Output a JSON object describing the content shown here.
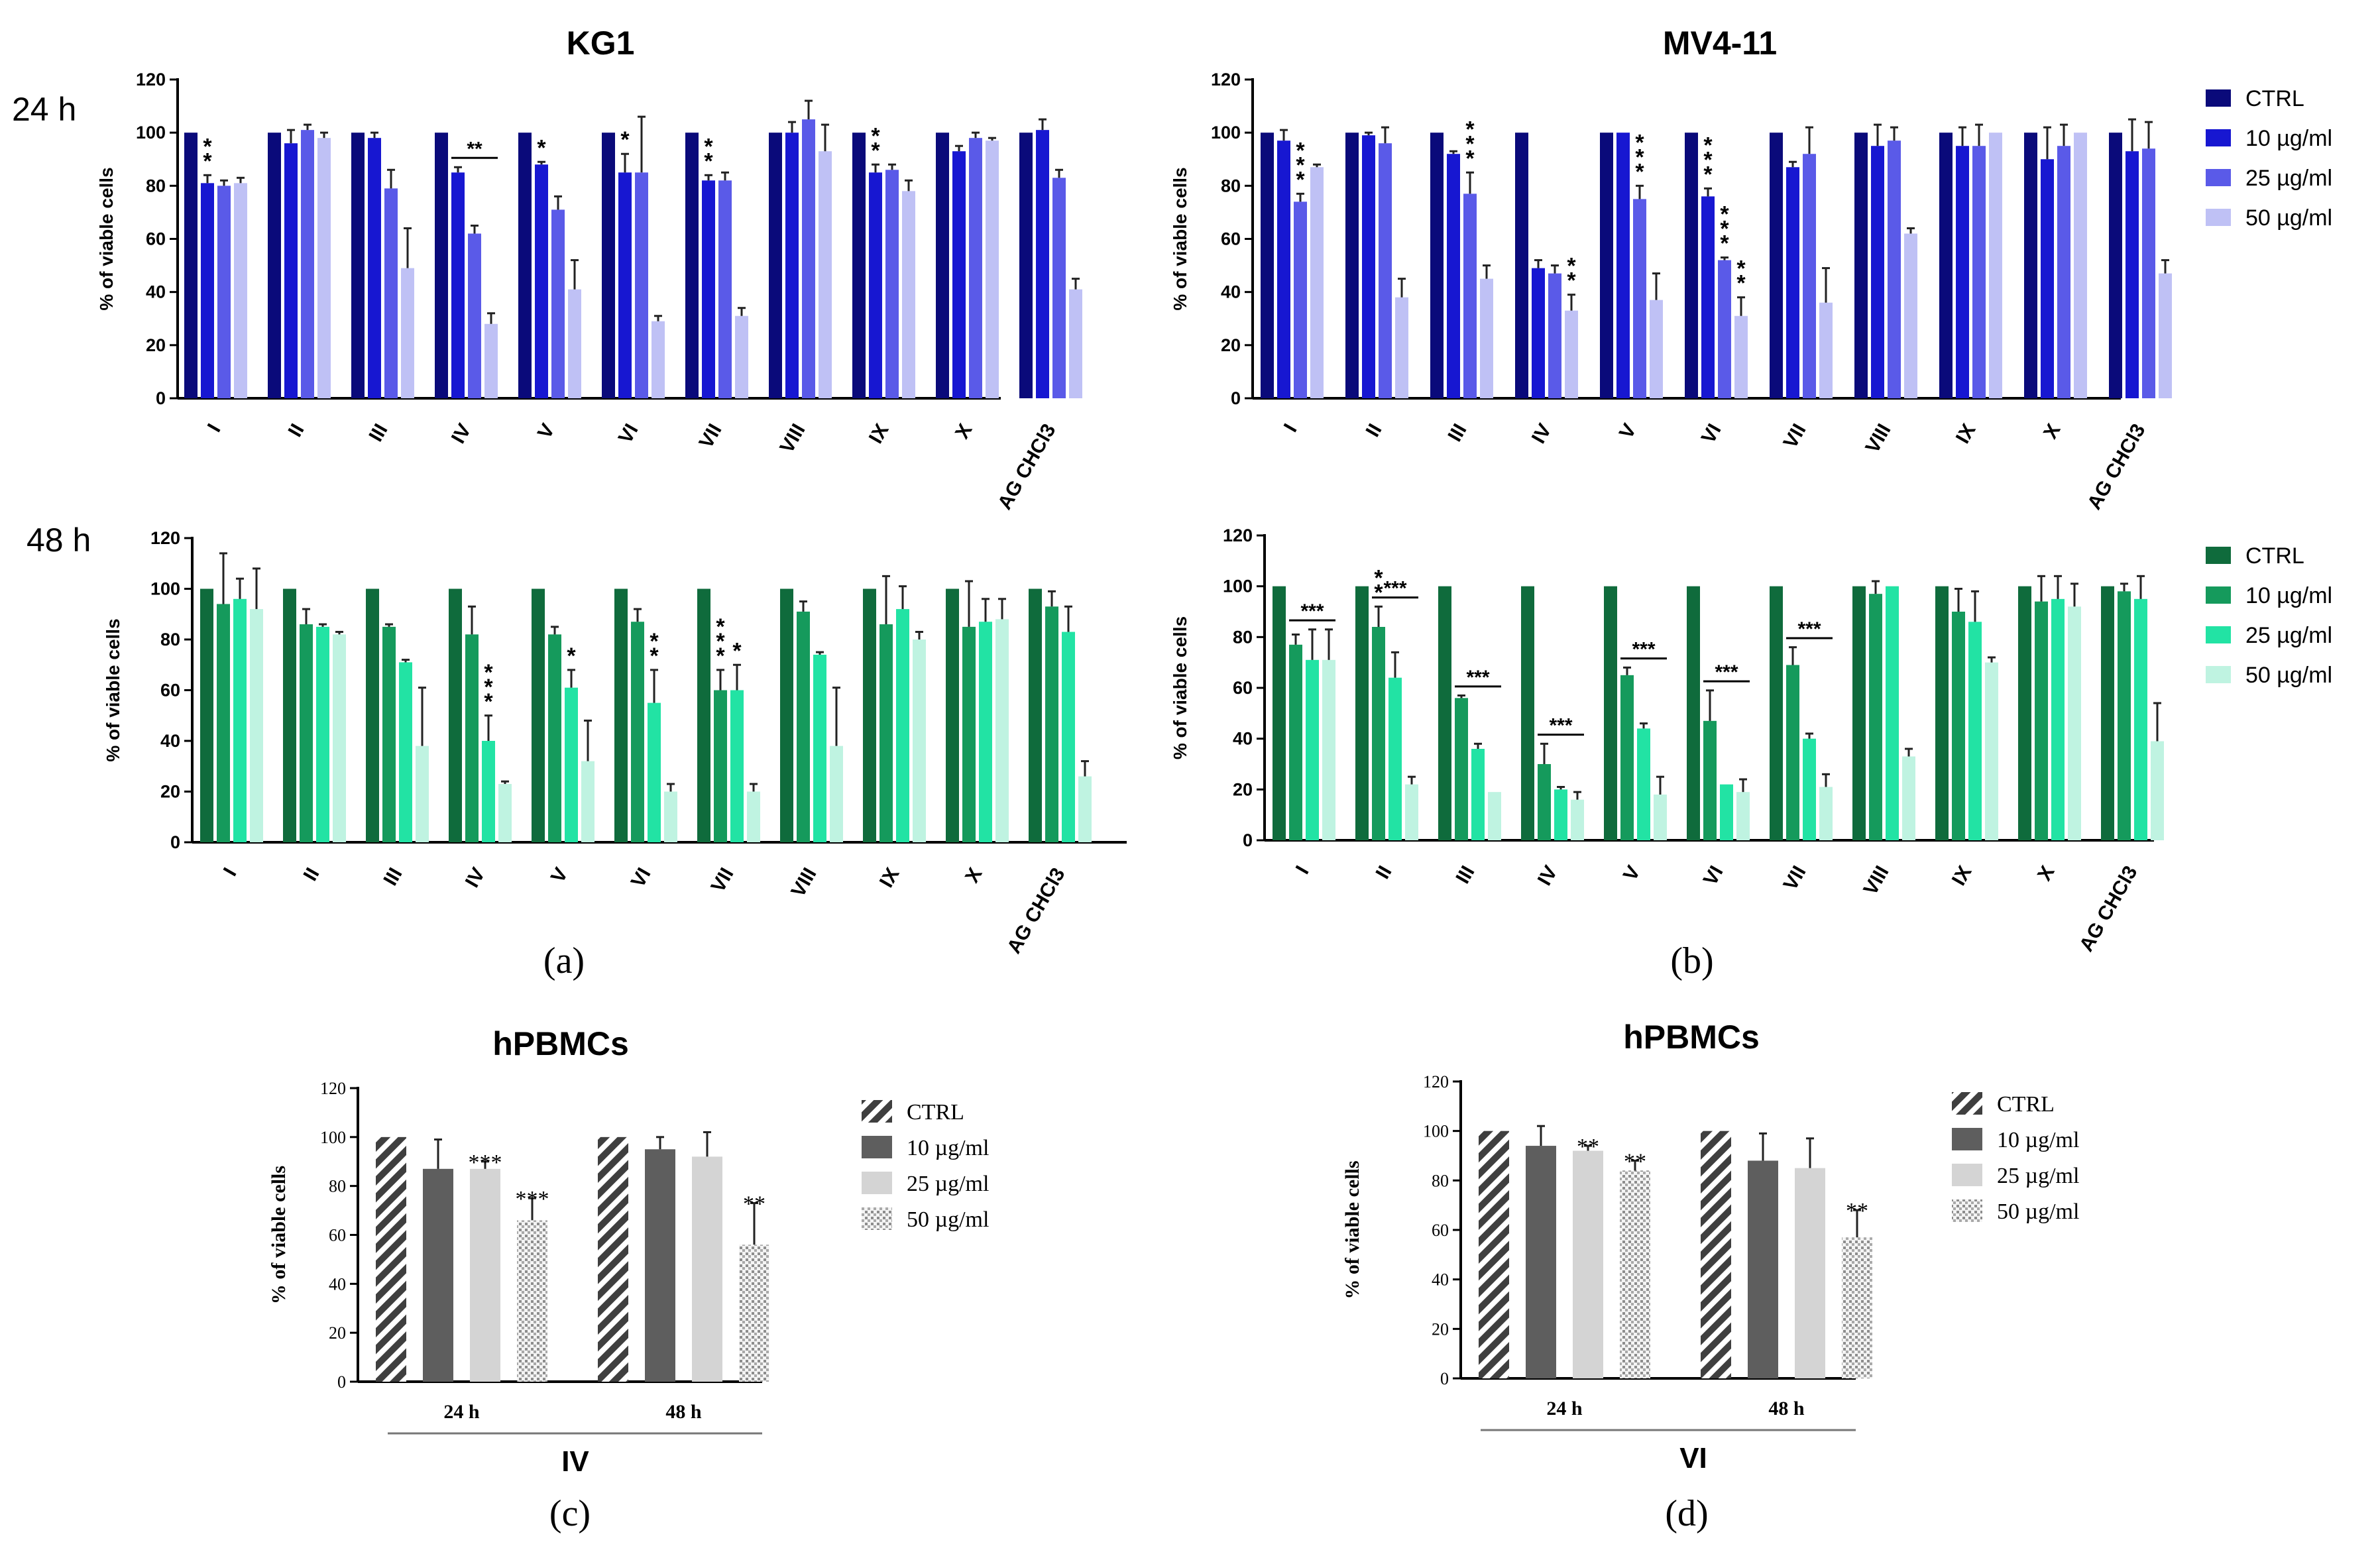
{
  "figure": {
    "panel_a_label": "(a)",
    "panel_b_label": "(b)",
    "panel_c_label": "(c)",
    "panel_d_label": "(d)",
    "row_24h": "24 h",
    "row_48h": "48 h",
    "colors": {
      "blue": [
        "#0a0a7a",
        "#1717d1",
        "#5a5ae8",
        "#bfc1f5"
      ],
      "green": [
        "#0f6b3c",
        "#159a5c",
        "#22e3a4",
        "#bff3e1"
      ],
      "gray": [
        "#4a4a4a",
        "#5e5e5e",
        "#d4d4d4",
        "#bdbdbd"
      ]
    }
  },
  "chart_data": [
    {
      "id": "kg1_24",
      "type": "bar",
      "title": "KG1",
      "ylabel": "% of viable cells",
      "ylim": [
        0,
        120
      ],
      "yticks": [
        0,
        20,
        40,
        60,
        80,
        100,
        120
      ],
      "categories": [
        "I",
        "II",
        "III",
        "IV",
        "V",
        "VI",
        "VII",
        "VIII",
        "IX",
        "X",
        "AG CHCl3"
      ],
      "legend": null,
      "series": [
        {
          "name": "CTRL",
          "values": [
            100,
            100,
            100,
            100,
            100,
            100,
            100,
            100,
            100,
            100,
            100
          ],
          "errors": [
            0,
            0,
            0,
            0,
            0,
            0,
            0,
            0,
            0,
            0,
            0
          ]
        },
        {
          "name": "10 µg/ml",
          "values": [
            81,
            96,
            98,
            85,
            88,
            85,
            82,
            100,
            85,
            93,
            101
          ],
          "errors": [
            3,
            5,
            2,
            2,
            1,
            7,
            2,
            4,
            3,
            2,
            4
          ]
        },
        {
          "name": "25 µg/ml",
          "values": [
            80,
            101,
            79,
            62,
            71,
            85,
            82,
            105,
            86,
            98,
            83
          ],
          "errors": [
            2,
            2,
            7,
            3,
            5,
            21,
            3,
            7,
            2,
            2,
            3
          ]
        },
        {
          "name": "50 µg/ml",
          "values": [
            81,
            98,
            49,
            28,
            41,
            29,
            31,
            93,
            78,
            97,
            41
          ],
          "errors": [
            2,
            2,
            15,
            4,
            11,
            2,
            3,
            10,
            4,
            1,
            4
          ]
        }
      ],
      "annotations": [
        {
          "category": 0,
          "series": 1,
          "text": "**",
          "style": "vertical"
        },
        {
          "category": 3,
          "series": 1,
          "text": "**",
          "style": "bracket"
        },
        {
          "category": 4,
          "series": 1,
          "text": "*",
          "style": "vertical"
        },
        {
          "category": 5,
          "series": 1,
          "text": "*",
          "style": "vertical"
        },
        {
          "category": 6,
          "series": 1,
          "text": "**",
          "style": "vertical"
        },
        {
          "category": 8,
          "series": 1,
          "text": "**",
          "style": "vertical"
        }
      ]
    },
    {
      "id": "mv_24",
      "type": "bar",
      "title": "MV4-11",
      "ylabel": "% of viable cells",
      "ylim": [
        0,
        120
      ],
      "yticks": [
        0,
        20,
        40,
        60,
        80,
        100,
        120
      ],
      "categories": [
        "I",
        "II",
        "III",
        "IV",
        "V",
        "VI",
        "VII",
        "VIII",
        "IX",
        "X",
        "AG CHCl3"
      ],
      "legend": [
        "CTRL",
        "10 µg/ml",
        "25 µg/ml",
        "50 µg/ml"
      ],
      "series": [
        {
          "name": "CTRL",
          "values": [
            100,
            100,
            100,
            100,
            100,
            100,
            100,
            100,
            100,
            100,
            100
          ],
          "errors": [
            0,
            0,
            0,
            0,
            0,
            0,
            0,
            0,
            0,
            0,
            0
          ]
        },
        {
          "name": "10 µg/ml",
          "values": [
            97,
            99,
            92,
            49,
            100,
            76,
            87,
            95,
            95,
            90,
            93
          ],
          "errors": [
            4,
            1,
            1,
            3,
            0,
            3,
            2,
            8,
            7,
            12,
            12
          ]
        },
        {
          "name": "25 µg/ml",
          "values": [
            74,
            96,
            77,
            47,
            75,
            52,
            92,
            97,
            95,
            95,
            94
          ],
          "errors": [
            3,
            6,
            8,
            3,
            5,
            1,
            10,
            5,
            8,
            8,
            10
          ]
        },
        {
          "name": "50 µg/ml",
          "values": [
            87,
            38,
            45,
            33,
            37,
            31,
            36,
            62,
            100,
            100,
            47
          ],
          "errors": [
            1,
            7,
            5,
            6,
            10,
            7,
            13,
            2,
            0,
            0,
            5
          ]
        }
      ],
      "annotations": [
        {
          "category": 0,
          "series": 2,
          "text": "***",
          "style": "vertical"
        },
        {
          "category": 2,
          "series": 2,
          "text": "***",
          "style": "vertical"
        },
        {
          "category": 3,
          "series": 3,
          "text": "**",
          "style": "vertical"
        },
        {
          "category": 4,
          "series": 2,
          "text": "***",
          "style": "vertical"
        },
        {
          "category": 5,
          "series": 1,
          "text": "***",
          "style": "vertical"
        },
        {
          "category": 5,
          "series": 2,
          "text": "***",
          "style": "vertical"
        },
        {
          "category": 5,
          "series": 3,
          "text": "**",
          "style": "vertical"
        }
      ]
    },
    {
      "id": "kg1_48",
      "type": "bar",
      "title": "",
      "ylabel": "% of viable cells",
      "ylim": [
        0,
        120
      ],
      "yticks": [
        0,
        20,
        40,
        60,
        80,
        100,
        120
      ],
      "categories": [
        "I",
        "II",
        "III",
        "IV",
        "V",
        "VI",
        "VII",
        "VIII",
        "IX",
        "X",
        "AG CHCl3"
      ],
      "legend": null,
      "series": [
        {
          "name": "CTRL",
          "values": [
            100,
            100,
            100,
            100,
            100,
            100,
            100,
            100,
            100,
            100,
            100
          ],
          "errors": [
            0,
            0,
            0,
            0,
            0,
            0,
            0,
            0,
            0,
            0,
            0
          ]
        },
        {
          "name": "10 µg/ml",
          "values": [
            94,
            86,
            85,
            82,
            82,
            87,
            60,
            91,
            86,
            85,
            93
          ],
          "errors": [
            20,
            6,
            1,
            11,
            3,
            5,
            8,
            4,
            19,
            18,
            6
          ]
        },
        {
          "name": "25 µg/ml",
          "values": [
            96,
            85,
            71,
            40,
            61,
            55,
            60,
            74,
            92,
            87,
            83
          ],
          "errors": [
            8,
            1,
            1,
            10,
            7,
            13,
            10,
            1,
            9,
            9,
            10
          ]
        },
        {
          "name": "50 µg/ml",
          "values": [
            92,
            82,
            38,
            23,
            32,
            20,
            20,
            38,
            80,
            88,
            26
          ],
          "errors": [
            16,
            1,
            23,
            1,
            16,
            3,
            3,
            23,
            3,
            8,
            6
          ]
        }
      ],
      "annotations": [
        {
          "category": 3,
          "series": 2,
          "text": "***",
          "style": "vertical"
        },
        {
          "category": 4,
          "series": 2,
          "text": "*",
          "style": "vertical"
        },
        {
          "category": 5,
          "series": 2,
          "text": "**",
          "style": "vertical"
        },
        {
          "category": 6,
          "series": 1,
          "text": "***",
          "style": "vertical"
        },
        {
          "category": 6,
          "series": 2,
          "text": "*",
          "style": "vertical"
        }
      ]
    },
    {
      "id": "mv_48",
      "type": "bar",
      "title": "",
      "ylabel": "% of viable cells",
      "ylim": [
        0,
        120
      ],
      "yticks": [
        0,
        20,
        40,
        60,
        80,
        100,
        120
      ],
      "categories": [
        "I",
        "II",
        "III",
        "IV",
        "V",
        "VI",
        "VII",
        "VIII",
        "IX",
        "X",
        "AG CHCl3"
      ],
      "legend": [
        "CTRL",
        "10 µg/ml",
        "25 µg/ml",
        "50 µg/ml"
      ],
      "series": [
        {
          "name": "CTRL",
          "values": [
            100,
            100,
            100,
            100,
            100,
            100,
            100,
            100,
            100,
            100,
            100
          ],
          "errors": [
            0,
            0,
            0,
            0,
            0,
            0,
            0,
            0,
            0,
            0,
            0
          ]
        },
        {
          "name": "10 µg/ml",
          "values": [
            77,
            84,
            56,
            30,
            65,
            47,
            69,
            97,
            90,
            94,
            98
          ],
          "errors": [
            4,
            8,
            1,
            8,
            3,
            12,
            7,
            5,
            9,
            10,
            3
          ]
        },
        {
          "name": "25 µg/ml",
          "values": [
            71,
            64,
            36,
            20,
            44,
            22,
            40,
            100,
            86,
            95,
            95
          ],
          "errors": [
            12,
            10,
            2,
            1,
            2,
            0,
            2,
            0,
            12,
            9,
            9
          ]
        },
        {
          "name": "50 µg/ml",
          "values": [
            71,
            22,
            19,
            16,
            18,
            19,
            21,
            33,
            70,
            92,
            39
          ],
          "errors": [
            12,
            3,
            0,
            3,
            7,
            5,
            5,
            3,
            2,
            9,
            15
          ]
        }
      ],
      "annotations": [
        {
          "category": 0,
          "series": 2,
          "text": "***",
          "style": "bracket"
        },
        {
          "category": 1,
          "series": 1,
          "text": "**",
          "style": "vertical"
        },
        {
          "category": 1,
          "series": 2,
          "text": "***",
          "style": "bracket"
        },
        {
          "category": 2,
          "series": 2,
          "text": "***",
          "style": "bracket"
        },
        {
          "category": 3,
          "series": 2,
          "text": "***",
          "style": "bracket"
        },
        {
          "category": 4,
          "series": 2,
          "text": "***",
          "style": "bracket"
        },
        {
          "category": 5,
          "series": 2,
          "text": "***",
          "style": "bracket"
        },
        {
          "category": 6,
          "series": 2,
          "text": "***",
          "style": "bracket"
        }
      ]
    },
    {
      "id": "hpbmc_iv",
      "type": "bar",
      "title": "hPBMCs",
      "compound": "IV",
      "ylabel": "% of viable cells",
      "ylim": [
        0,
        120
      ],
      "yticks": [
        0,
        20,
        40,
        60,
        80,
        100,
        120
      ],
      "categories": [
        "24 h",
        "48 h"
      ],
      "legend": [
        "CTRL",
        "10 µg/ml",
        "25 µg/ml",
        "50 µg/ml"
      ],
      "series": [
        {
          "name": "CTRL",
          "values": [
            100,
            100
          ],
          "errors": [
            0,
            0
          ]
        },
        {
          "name": "10 µg/ml",
          "values": [
            87,
            95
          ],
          "errors": [
            12,
            5
          ]
        },
        {
          "name": "25 µg/ml",
          "values": [
            87,
            92
          ],
          "errors": [
            3,
            10
          ]
        },
        {
          "name": "50 µg/ml",
          "values": [
            66,
            56
          ],
          "errors": [
            9,
            17
          ]
        }
      ],
      "annotations": [
        {
          "category": 0,
          "series": 2,
          "text": "***",
          "style": "top"
        },
        {
          "category": 0,
          "series": 3,
          "text": "***",
          "style": "top"
        },
        {
          "category": 1,
          "series": 3,
          "text": "**",
          "style": "top"
        }
      ]
    },
    {
      "id": "hpbmc_vi",
      "type": "bar",
      "title": "hPBMCs",
      "compound": "VI",
      "ylabel": "% of viable cells",
      "ylim": [
        0,
        120
      ],
      "yticks": [
        0,
        20,
        40,
        60,
        80,
        100,
        120
      ],
      "categories": [
        "24 h",
        "48 h"
      ],
      "legend": [
        "CTRL",
        "10 µg/ml",
        "25 µg/ml",
        "50 µg/ml"
      ],
      "series": [
        {
          "name": "CTRL",
          "values": [
            100,
            100
          ],
          "errors": [
            0,
            0
          ]
        },
        {
          "name": "10 µg/ml",
          "values": [
            94,
            88
          ],
          "errors": [
            8,
            11
          ]
        },
        {
          "name": "25 µg/ml",
          "values": [
            92,
            85
          ],
          "errors": [
            2,
            12
          ]
        },
        {
          "name": "50 µg/ml",
          "values": [
            84,
            57
          ],
          "errors": [
            4,
            11
          ]
        }
      ],
      "annotations": [
        {
          "category": 0,
          "series": 2,
          "text": "**",
          "style": "top"
        },
        {
          "category": 0,
          "series": 3,
          "text": "**",
          "style": "top"
        },
        {
          "category": 1,
          "series": 3,
          "text": "**",
          "style": "top"
        }
      ]
    }
  ]
}
